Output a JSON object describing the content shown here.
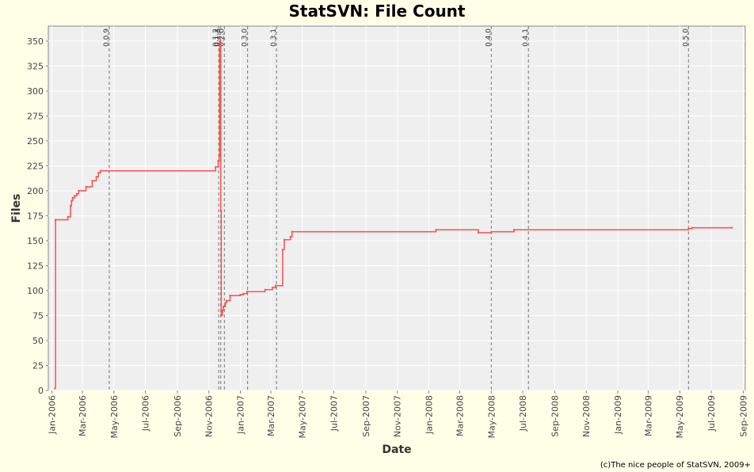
{
  "title": "StatSVN: File Count",
  "footer": "(c)The nice people of StatSVN, 2009+",
  "chart_data": {
    "type": "line",
    "title": "StatSVN: File Count",
    "xlabel": "Date",
    "ylabel": "Files",
    "xlim": [
      "2005-12-25",
      "2009-09-05"
    ],
    "ylim": [
      0,
      365
    ],
    "yticks": [
      0,
      25,
      50,
      75,
      100,
      125,
      150,
      175,
      200,
      225,
      250,
      275,
      300,
      325,
      350
    ],
    "xticks": [
      {
        "date": "2006-01-01",
        "label": "Jan-2006"
      },
      {
        "date": "2006-03-01",
        "label": "Mar-2006"
      },
      {
        "date": "2006-05-01",
        "label": "May-2006"
      },
      {
        "date": "2006-07-01",
        "label": "Jul-2006"
      },
      {
        "date": "2006-09-01",
        "label": "Sep-2006"
      },
      {
        "date": "2006-11-01",
        "label": "Nov-2006"
      },
      {
        "date": "2007-01-01",
        "label": "Jan-2007"
      },
      {
        "date": "2007-03-01",
        "label": "Mar-2007"
      },
      {
        "date": "2007-05-01",
        "label": "May-2007"
      },
      {
        "date": "2007-07-01",
        "label": "Jul-2007"
      },
      {
        "date": "2007-09-01",
        "label": "Sep-2007"
      },
      {
        "date": "2007-11-01",
        "label": "Nov-2007"
      },
      {
        "date": "2008-01-01",
        "label": "Jan-2008"
      },
      {
        "date": "2008-03-01",
        "label": "Mar-2008"
      },
      {
        "date": "2008-05-01",
        "label": "May-2008"
      },
      {
        "date": "2008-07-01",
        "label": "Jul-2008"
      },
      {
        "date": "2008-09-01",
        "label": "Sep-2008"
      },
      {
        "date": "2008-11-01",
        "label": "Nov-2008"
      },
      {
        "date": "2009-01-01",
        "label": "Jan-2009"
      },
      {
        "date": "2009-03-01",
        "label": "Mar-2009"
      },
      {
        "date": "2009-05-01",
        "label": "May-2009"
      },
      {
        "date": "2009-07-01",
        "label": "Jul-2009"
      },
      {
        "date": "2009-09-01",
        "label": "Sep-2009"
      }
    ],
    "grid": true,
    "markers": [
      {
        "date": "2006-04-22",
        "label": "0.0.9"
      },
      {
        "date": "2006-11-20",
        "label": "0.1.2"
      },
      {
        "date": "2006-11-24",
        "label": "0.1.3"
      },
      {
        "date": "2006-12-01",
        "label": "0.2.0"
      },
      {
        "date": "2007-01-15",
        "label": "0.3.0"
      },
      {
        "date": "2007-03-12",
        "label": "0.3.1"
      },
      {
        "date": "2008-05-01",
        "label": "0.4.0"
      },
      {
        "date": "2008-07-12",
        "label": "0.4.1"
      },
      {
        "date": "2009-05-18",
        "label": "0.5.0"
      }
    ],
    "series": [
      {
        "color": "#ff4d4d",
        "points": [
          [
            "2006-01-07",
            2
          ],
          [
            "2006-01-08",
            171
          ],
          [
            "2006-02-01",
            174
          ],
          [
            "2006-02-06",
            185
          ],
          [
            "2006-02-08",
            190
          ],
          [
            "2006-02-10",
            193
          ],
          [
            "2006-02-14",
            195
          ],
          [
            "2006-02-18",
            197
          ],
          [
            "2006-02-22",
            200
          ],
          [
            "2006-03-08",
            204
          ],
          [
            "2006-03-20",
            210
          ],
          [
            "2006-03-28",
            214
          ],
          [
            "2006-04-01",
            218
          ],
          [
            "2006-04-05",
            220
          ],
          [
            "2006-11-14",
            224
          ],
          [
            "2006-11-19",
            230
          ],
          [
            "2006-11-21",
            235
          ],
          [
            "2006-11-22",
            350
          ],
          [
            "2006-11-24",
            180
          ],
          [
            "2006-11-25",
            75
          ],
          [
            "2006-11-27",
            80
          ],
          [
            "2006-11-29",
            84
          ],
          [
            "2006-12-03",
            88
          ],
          [
            "2006-12-05",
            90
          ],
          [
            "2006-12-12",
            95
          ],
          [
            "2007-01-01",
            96
          ],
          [
            "2007-01-07",
            97
          ],
          [
            "2007-01-14",
            99
          ],
          [
            "2007-02-18",
            101
          ],
          [
            "2007-03-04",
            103
          ],
          [
            "2007-03-10",
            105
          ],
          [
            "2007-03-24",
            141
          ],
          [
            "2007-03-27",
            151
          ],
          [
            "2007-04-08",
            154
          ],
          [
            "2007-04-11",
            159
          ],
          [
            "2008-01-15",
            161
          ],
          [
            "2008-04-06",
            158
          ],
          [
            "2008-05-01",
            159
          ],
          [
            "2008-06-14",
            161
          ],
          [
            "2009-05-18",
            162
          ],
          [
            "2009-05-25",
            163
          ],
          [
            "2009-08-10",
            163
          ]
        ]
      }
    ]
  }
}
